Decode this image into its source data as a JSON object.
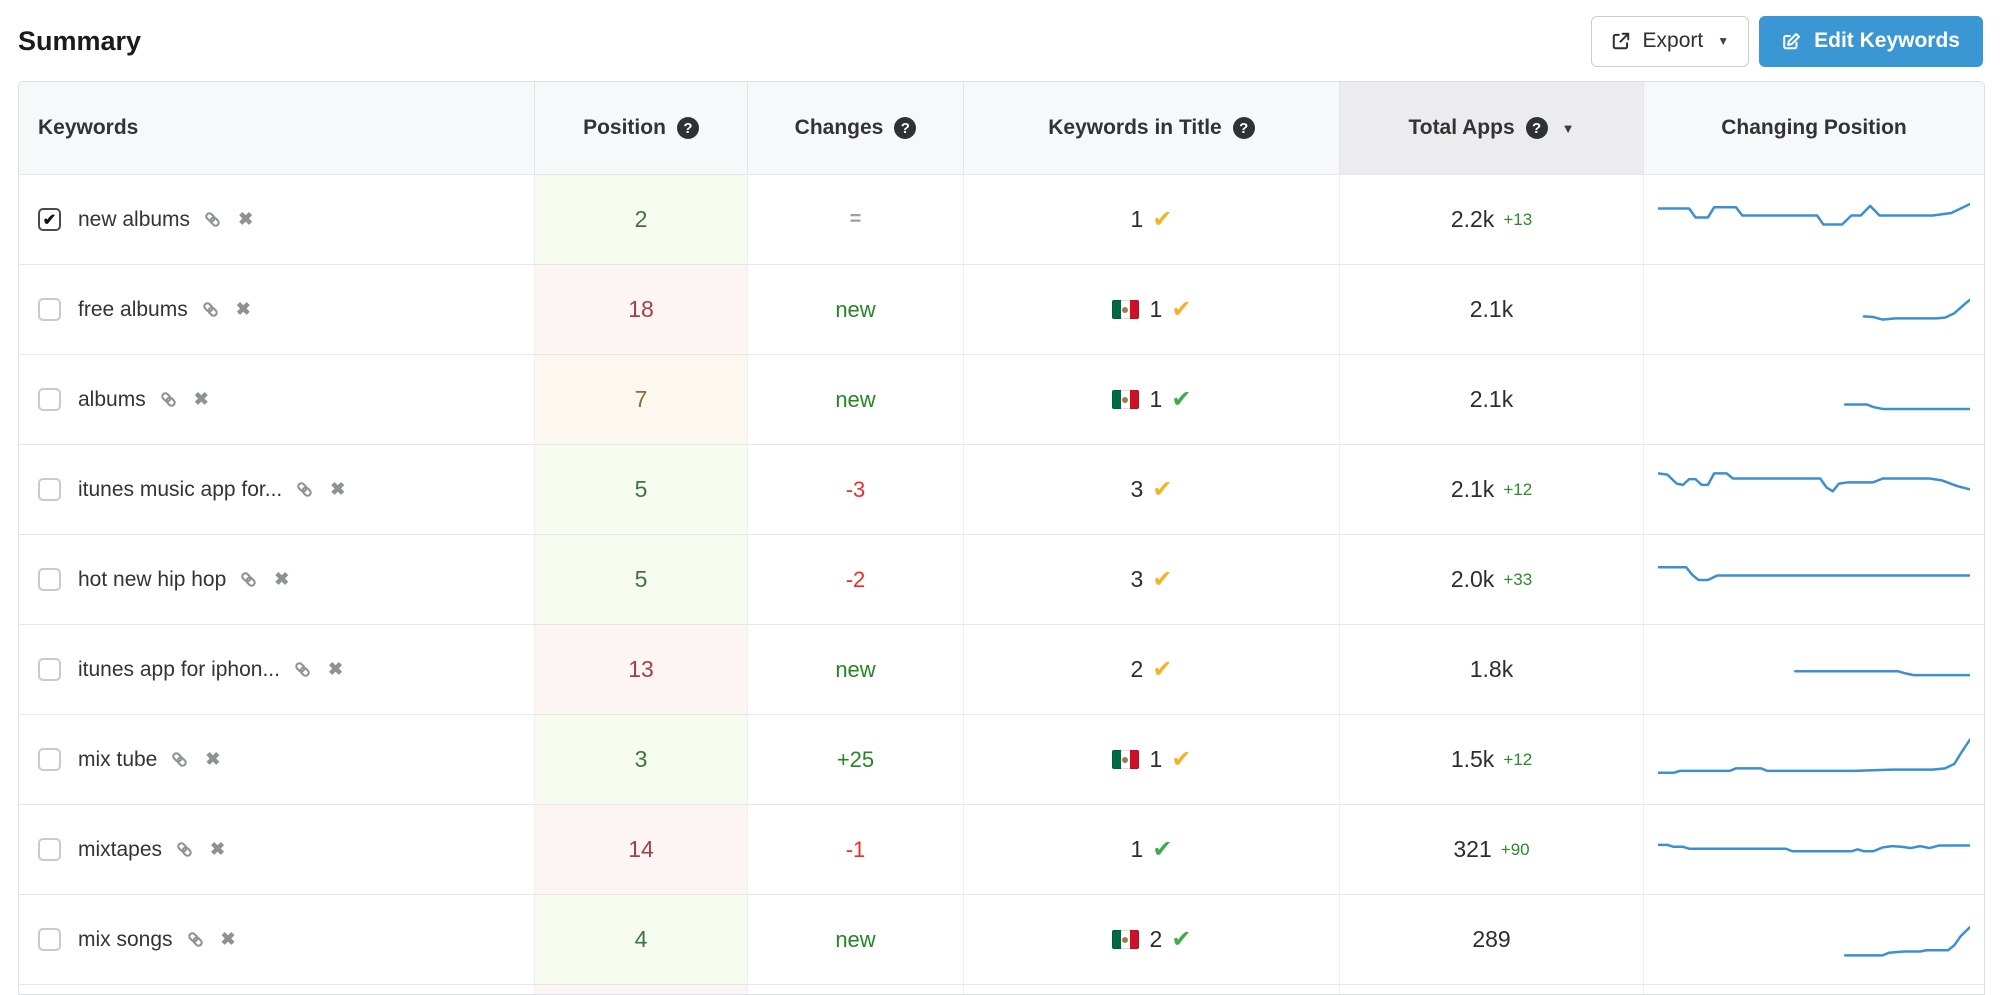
{
  "page": {
    "title": "Summary"
  },
  "toolbar": {
    "export_label": "Export",
    "edit_keywords_label": "Edit Keywords"
  },
  "icons": {
    "help_glyph": "?",
    "sort_caret": "▼",
    "export_caret": "▼",
    "check_glyph": "✔",
    "checkbox_check": "✔",
    "remove_glyph": "✖"
  },
  "colors": {
    "primary_button": "#3b97d3",
    "sparkline": "#3d8fd1",
    "position_good_text": "#3c763d",
    "position_good_bg": "#f6fcf0",
    "position_bad_text": "#9c4444",
    "position_bad_bg": "#fdf4f4",
    "position_warn_text": "#8a6d3b",
    "position_warn_bg": "#fcf8ef",
    "change_up": "#268626",
    "change_down": "#ee2b2b",
    "check_yellow": "#f2b32a",
    "check_green": "#3fab4a"
  },
  "table": {
    "columns": [
      {
        "label": "Keywords",
        "help": false,
        "sort": false,
        "align": "left",
        "sorted": false
      },
      {
        "label": "Position",
        "help": true,
        "sort": false,
        "align": "center",
        "sorted": false
      },
      {
        "label": "Changes",
        "help": true,
        "sort": false,
        "align": "center",
        "sorted": false
      },
      {
        "label": "Keywords in Title",
        "help": true,
        "sort": false,
        "align": "center",
        "sorted": false
      },
      {
        "label": "Total Apps",
        "help": true,
        "sort": true,
        "align": "center",
        "sorted": true
      },
      {
        "label": "Changing Position",
        "help": false,
        "sort": false,
        "align": "center",
        "sorted": false
      }
    ],
    "rows": [
      {
        "keyword": "new albums",
        "checked": true,
        "position": "2",
        "position_state": "good",
        "change": "=",
        "change_state": "neutral",
        "title_flag": false,
        "title_count": "1",
        "title_check": "yellow",
        "total_apps": "2.2k",
        "total_apps_delta": "+13",
        "sparkline": [
          [
            0,
            32
          ],
          [
            10,
            32
          ],
          [
            12,
            46
          ],
          [
            16,
            46
          ],
          [
            18,
            30
          ],
          [
            25,
            30
          ],
          [
            27,
            43
          ],
          [
            51,
            43
          ],
          [
            53,
            57
          ],
          [
            59,
            57
          ],
          [
            62,
            43
          ],
          [
            65,
            43
          ],
          [
            68,
            28
          ],
          [
            71,
            43
          ],
          [
            88,
            43
          ],
          [
            94,
            39
          ],
          [
            100,
            25
          ]
        ]
      },
      {
        "keyword": "free albums",
        "checked": false,
        "position": "18",
        "position_state": "bad",
        "change": "new",
        "change_state": "new",
        "title_flag": true,
        "title_count": "1",
        "title_check": "yellow",
        "total_apps": "2.1k",
        "total_apps_delta": "",
        "sparkline": [
          [
            66,
            60
          ],
          [
            69,
            61
          ],
          [
            72,
            65
          ],
          [
            76,
            63
          ],
          [
            89,
            63
          ],
          [
            92,
            62
          ],
          [
            95,
            55
          ],
          [
            98,
            42
          ],
          [
            100,
            34
          ]
        ]
      },
      {
        "keyword": "albums",
        "checked": false,
        "position": "7",
        "position_state": "warn",
        "change": "new",
        "change_state": "new",
        "title_flag": true,
        "title_count": "1",
        "title_check": "green",
        "total_apps": "2.1k",
        "total_apps_delta": "",
        "sparkline": [
          [
            60,
            57
          ],
          [
            67,
            57
          ],
          [
            69,
            61
          ],
          [
            72,
            64
          ],
          [
            100,
            64
          ]
        ]
      },
      {
        "keyword": "itunes music app for...",
        "checked": false,
        "position": "5",
        "position_state": "good",
        "change": "-3",
        "change_state": "down",
        "title_flag": false,
        "title_count": "3",
        "title_check": "yellow",
        "total_apps": "2.1k",
        "total_apps_delta": "+12",
        "sparkline": [
          [
            0,
            24
          ],
          [
            3,
            26
          ],
          [
            6,
            40
          ],
          [
            8,
            42
          ],
          [
            10,
            33
          ],
          [
            12,
            33
          ],
          [
            14,
            42
          ],
          [
            16,
            42
          ],
          [
            18,
            24
          ],
          [
            22,
            24
          ],
          [
            24,
            32
          ],
          [
            52,
            32
          ],
          [
            54,
            46
          ],
          [
            56,
            52
          ],
          [
            58,
            40
          ],
          [
            61,
            38
          ],
          [
            69,
            38
          ],
          [
            72,
            32
          ],
          [
            87,
            32
          ],
          [
            91,
            35
          ],
          [
            96,
            44
          ],
          [
            100,
            49
          ]
        ]
      },
      {
        "keyword": "hot new hip hop",
        "checked": false,
        "position": "5",
        "position_state": "good",
        "change": "-2",
        "change_state": "down",
        "title_flag": false,
        "title_count": "3",
        "title_check": "yellow",
        "total_apps": "2.0k",
        "total_apps_delta": "+33",
        "sparkline": [
          [
            0,
            30
          ],
          [
            9,
            30
          ],
          [
            11,
            42
          ],
          [
            13,
            50
          ],
          [
            16,
            50
          ],
          [
            19,
            43
          ],
          [
            100,
            43
          ]
        ]
      },
      {
        "keyword": "itunes app for iphon...",
        "checked": false,
        "position": "13",
        "position_state": "bad",
        "change": "new",
        "change_state": "new",
        "title_flag": false,
        "title_count": "2",
        "title_check": "yellow",
        "total_apps": "1.8k",
        "total_apps_delta": "",
        "sparkline": [
          [
            44,
            52
          ],
          [
            77,
            52
          ],
          [
            79,
            55
          ],
          [
            82,
            58
          ],
          [
            100,
            58
          ]
        ]
      },
      {
        "keyword": "mix tube",
        "checked": false,
        "position": "3",
        "position_state": "good",
        "change": "+25",
        "change_state": "up",
        "title_flag": true,
        "title_count": "1",
        "title_check": "yellow",
        "total_apps": "1.5k",
        "total_apps_delta": "+12",
        "sparkline": [
          [
            0,
            70
          ],
          [
            5,
            70
          ],
          [
            7,
            67
          ],
          [
            23,
            67
          ],
          [
            25,
            63
          ],
          [
            33,
            63
          ],
          [
            35,
            67
          ],
          [
            63,
            67
          ],
          [
            75,
            65
          ],
          [
            88,
            65
          ],
          [
            92,
            63
          ],
          [
            95,
            56
          ],
          [
            97,
            40
          ],
          [
            100,
            18
          ]
        ]
      },
      {
        "keyword": "mixtapes",
        "checked": false,
        "position": "14",
        "position_state": "bad",
        "change": "-1",
        "change_state": "down",
        "title_flag": false,
        "title_count": "1",
        "title_check": "green",
        "total_apps": "321",
        "total_apps_delta": "+90",
        "sparkline": [
          [
            0,
            42
          ],
          [
            3,
            42
          ],
          [
            5,
            45
          ],
          [
            8,
            45
          ],
          [
            10,
            48
          ],
          [
            41,
            48
          ],
          [
            43,
            52
          ],
          [
            62,
            52
          ],
          [
            64,
            49
          ],
          [
            66,
            52
          ],
          [
            69,
            52
          ],
          [
            72,
            46
          ],
          [
            75,
            44
          ],
          [
            78,
            45
          ],
          [
            81,
            47
          ],
          [
            84,
            44
          ],
          [
            87,
            47
          ],
          [
            90,
            43
          ],
          [
            100,
            43
          ]
        ]
      },
      {
        "keyword": "mix songs",
        "checked": false,
        "position": "4",
        "position_state": "good",
        "change": "new",
        "change_state": "new",
        "title_flag": true,
        "title_count": "2",
        "title_check": "green",
        "total_apps": "289",
        "total_apps_delta": "",
        "sparkline": [
          [
            60,
            74
          ],
          [
            72,
            74
          ],
          [
            74,
            70
          ],
          [
            79,
            68
          ],
          [
            84,
            68
          ],
          [
            86,
            66
          ],
          [
            93,
            66
          ],
          [
            95,
            58
          ],
          [
            97,
            44
          ],
          [
            100,
            30
          ]
        ]
      }
    ]
  }
}
